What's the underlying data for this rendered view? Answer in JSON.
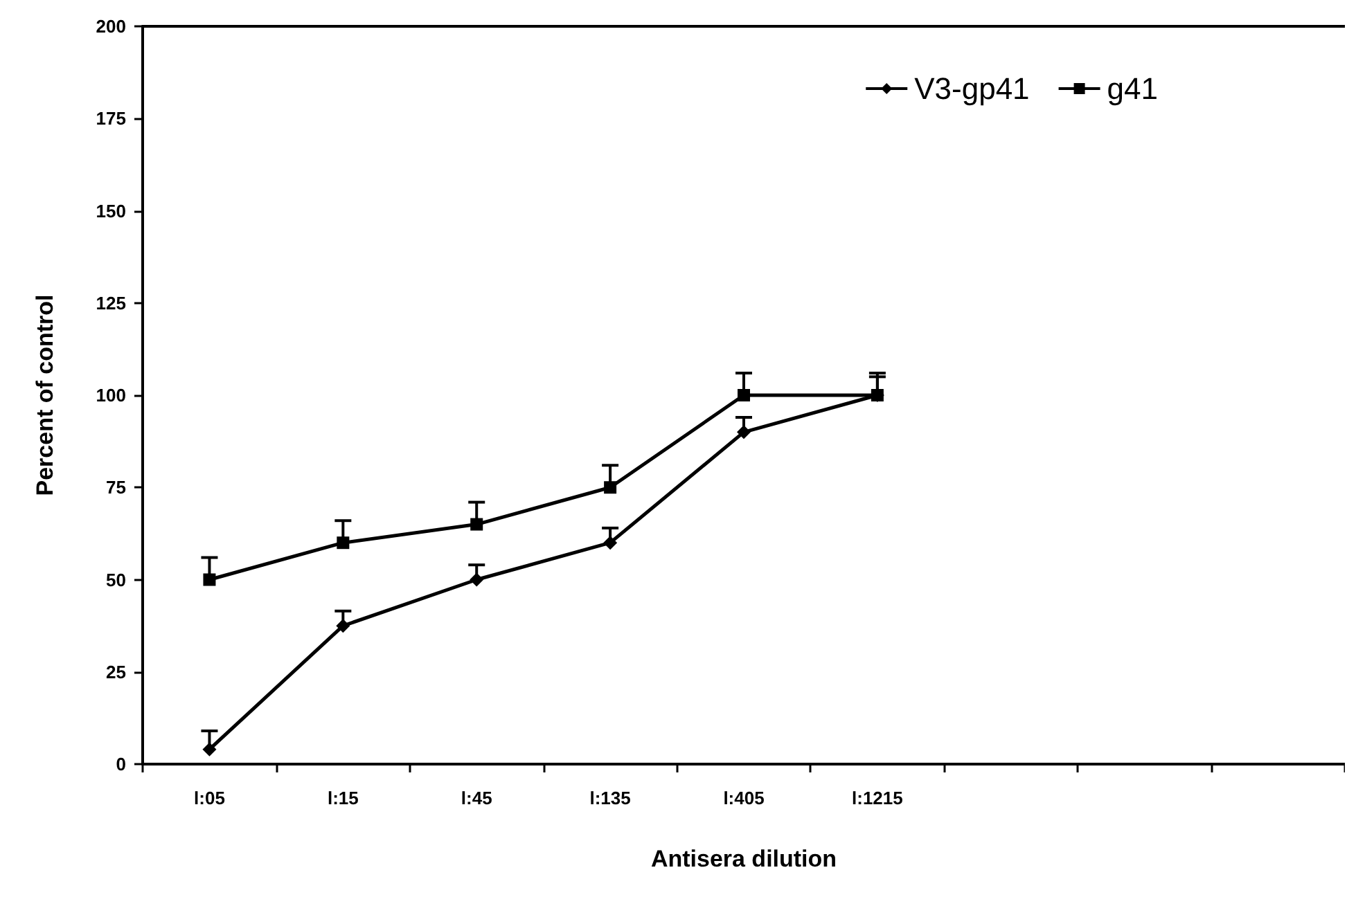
{
  "chart_data": {
    "type": "line",
    "xlabel": "Antisera dilution",
    "ylabel": "Percent of control",
    "categories": [
      "l:05",
      "l:15",
      "l:45",
      "l:135",
      "l:405",
      "l:1215",
      null,
      null,
      null
    ],
    "series": [
      {
        "name": "V3-gp41",
        "color": "#000000",
        "marker": "diamond",
        "values": [
          4,
          37.5,
          50,
          60,
          90,
          100,
          null,
          null,
          null
        ],
        "errors": [
          [
            4,
            9
          ],
          [
            37.5,
            41.5
          ],
          [
            50,
            54
          ],
          [
            60,
            64
          ],
          [
            90,
            94
          ],
          [
            100,
            105
          ],
          null,
          null,
          null
        ]
      },
      {
        "name": "g41",
        "color": "#000000",
        "marker": "square",
        "values": [
          50,
          60,
          65,
          75,
          100,
          100,
          null,
          null,
          null
        ],
        "errors": [
          [
            50,
            56
          ],
          [
            60,
            66
          ],
          [
            65,
            71
          ],
          [
            75,
            81
          ],
          [
            100,
            106
          ],
          [
            100,
            106
          ],
          null,
          null,
          null
        ]
      }
    ],
    "ylim": [
      0,
      200
    ],
    "yticks": [
      0,
      25,
      50,
      75,
      100,
      125,
      150,
      175,
      200
    ],
    "grid": false,
    "legend": "top right",
    "line_style": "solid"
  }
}
